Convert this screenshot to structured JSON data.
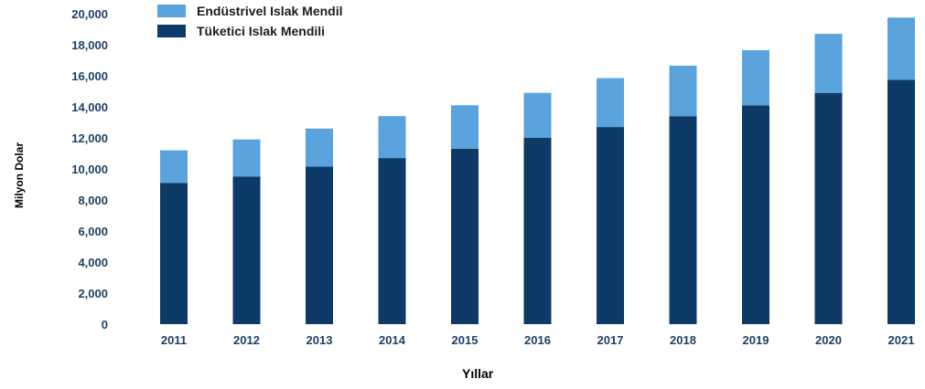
{
  "chart_data": {
    "type": "bar",
    "stacked": true,
    "categories": [
      "2011",
      "2012",
      "2013",
      "2014",
      "2015",
      "2016",
      "2017",
      "2018",
      "2019",
      "2020",
      "2021"
    ],
    "series": [
      {
        "name": "Tüketici Islak Mendili",
        "color": "#0d3a66",
        "values": [
          9100,
          9500,
          10150,
          10700,
          11300,
          12000,
          12700,
          13400,
          14100,
          14900,
          15750
        ]
      },
      {
        "name": "Endüstrivel Islak Mendil",
        "color": "#5aa3dc",
        "values": [
          2100,
          2400,
          2450,
          2700,
          2800,
          2900,
          3150,
          3250,
          3550,
          3800,
          4000
        ]
      }
    ],
    "yticks": [
      "0",
      "2,000",
      "4,000",
      "6,000",
      "8,000",
      "10,000",
      "12,000",
      "14,000",
      "16,000",
      "18,000",
      "20,000"
    ],
    "ylim": [
      0,
      20000
    ],
    "xlabel": "Yıllar",
    "ylabel": "Milyon Dolar",
    "legend": [
      {
        "label": "Endüstrivel Islak Mendil",
        "color": "#5aa3dc"
      },
      {
        "label": "Tüketici Islak Mendili",
        "color": "#0d3a66"
      }
    ],
    "legend_position": "top-left",
    "grid": false,
    "axis_text_color": "#1e3f66"
  }
}
